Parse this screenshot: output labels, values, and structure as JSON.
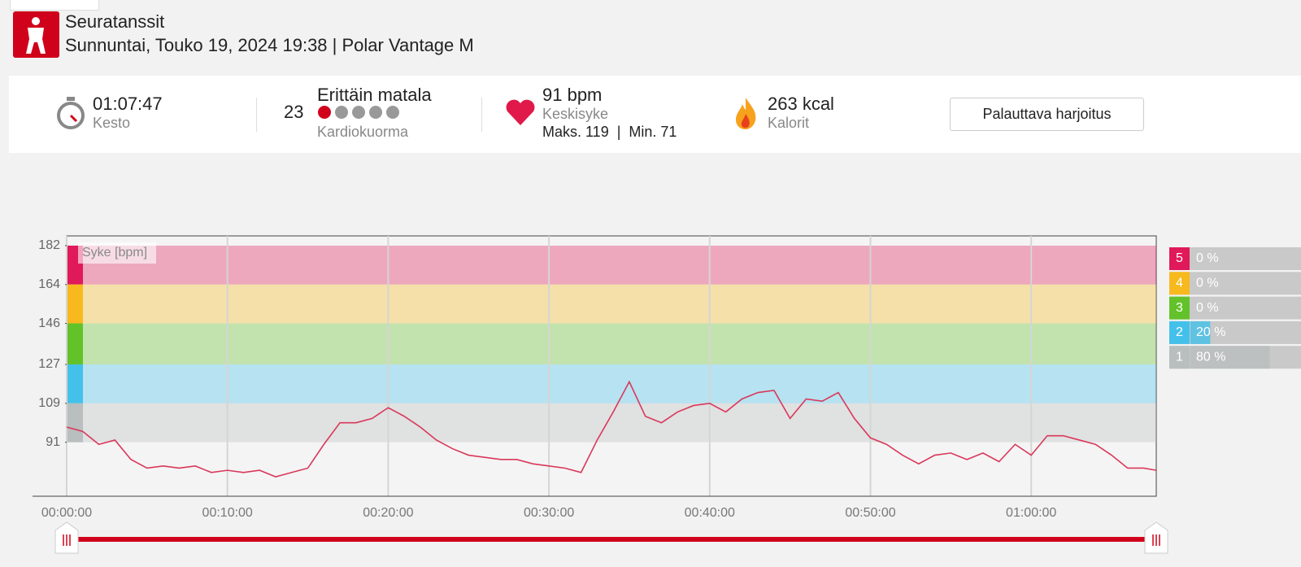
{
  "header": {
    "title": "Seuratanssit",
    "subtitle": "Sunnuntai, Touko 19, 2024 19:38 | Polar Vantage M"
  },
  "summary": {
    "duration": "01:07:47",
    "duration_label": "Kesto",
    "cardio_load_value": "23",
    "cardio_load_level": "Erittäin matala",
    "cardio_load_label": "Kardiokuorma",
    "heart_rate": "91 bpm",
    "heart_rate_label": "Keskisyke",
    "heart_rate_range": "Maks. 119  |  Min. 71",
    "calories": "263 kcal",
    "calories_label": "Kalorit",
    "button": "Palauttava harjoitus"
  },
  "chart_data": {
    "type": "line",
    "legend": "Syke [bpm]",
    "x": [
      0,
      1,
      2,
      3,
      4,
      5,
      6,
      7,
      8,
      9,
      10,
      11,
      12,
      13,
      14,
      15,
      16,
      17,
      18,
      19,
      20,
      21,
      22,
      23,
      24,
      25,
      26,
      27,
      28,
      29,
      30,
      31,
      32,
      33,
      34,
      35,
      36,
      37,
      38,
      39,
      40,
      41,
      42,
      43,
      44,
      45,
      46,
      47,
      48,
      49,
      50,
      51,
      52,
      53,
      54,
      55,
      56,
      57,
      58,
      59,
      60,
      61,
      62,
      63,
      64,
      65,
      66,
      67,
      67.78
    ],
    "series": [
      {
        "name": "Syke",
        "color": "#d9385a",
        "values": [
          98,
          96,
          90,
          92,
          83,
          79,
          80,
          79,
          80,
          77,
          78,
          77,
          78,
          75,
          77,
          79,
          90,
          100,
          100,
          102,
          107,
          103,
          98,
          92,
          88,
          85,
          84,
          83,
          83,
          81,
          80,
          79,
          77,
          92,
          105,
          119,
          103,
          100,
          105,
          108,
          109,
          105,
          111,
          114,
          115,
          102,
          111,
          110,
          114,
          102,
          93,
          90,
          85,
          81,
          85,
          86,
          83,
          86,
          82,
          90,
          85,
          94,
          94,
          92,
          90,
          85,
          79,
          79,
          78
        ]
      }
    ],
    "xlim": [
      0,
      67.78
    ],
    "xticks": [
      {
        "value": 0,
        "label": "00:00:00"
      },
      {
        "value": 10,
        "label": "00:10:00"
      },
      {
        "value": 20,
        "label": "00:20:00"
      },
      {
        "value": 30,
        "label": "00:30:00"
      },
      {
        "value": 40,
        "label": "00:40:00"
      },
      {
        "value": 50,
        "label": "00:50:00"
      },
      {
        "value": 60,
        "label": "01:00:00"
      }
    ],
    "ylim": [
      66,
      186.5
    ],
    "yticks": [
      91,
      109,
      127,
      146,
      164,
      182
    ],
    "zones": [
      {
        "name": "5",
        "from": 164,
        "to": 182,
        "color": "#e0195a",
        "percent": 0,
        "percent_label": "0 %"
      },
      {
        "name": "4",
        "from": 146,
        "to": 164,
        "color": "#f7b91d",
        "percent": 0,
        "percent_label": "0 %"
      },
      {
        "name": "3",
        "from": 127,
        "to": 146,
        "color": "#63c22a",
        "percent": 0,
        "percent_label": "0 %"
      },
      {
        "name": "2",
        "from": 109,
        "to": 127,
        "color": "#44c1ea",
        "percent": 20,
        "percent_label": "20 %"
      },
      {
        "name": "1",
        "from": 91,
        "to": 109,
        "color": "#b9bebe",
        "percent": 80,
        "percent_label": "80 %"
      }
    ]
  }
}
